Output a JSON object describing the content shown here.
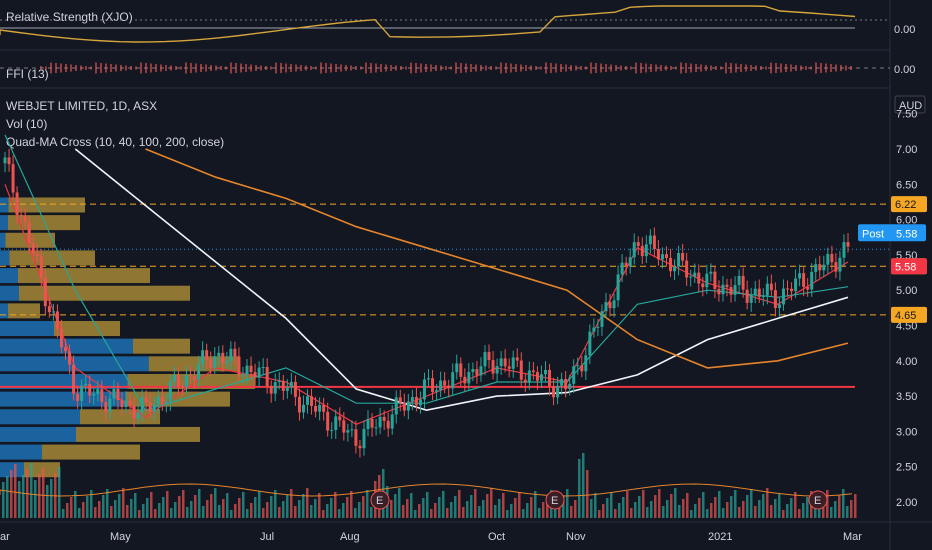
{
  "panes": {
    "rs_label": "Relative Strength (XJO)",
    "rs_value": "0.00",
    "fi_label": "FFI (13)",
    "fi_value": "0.00",
    "symbol_title": "WEBJET LIMITED, 1D, ASX",
    "vol_label": "Vol (10)",
    "ma_label": "Quad-MA Cross (10, 40, 100, 200, close)"
  },
  "price_axis": {
    "currency": "AUD",
    "ticks": [
      "7.50",
      "7.00",
      "6.50",
      "6.00",
      "5.50",
      "5.00",
      "4.50",
      "4.00",
      "3.50",
      "3.00",
      "2.50",
      "2.00"
    ]
  },
  "price_tags": {
    "post_label": "Post",
    "post_value": "5.58",
    "last_value": "5.58",
    "level_tags": [
      "6.22",
      "5.34",
      "4.65"
    ]
  },
  "time_axis": [
    "ar",
    "May",
    "Jul",
    "Aug",
    "Oct",
    "Nov",
    "2021",
    "Mar"
  ],
  "earnings_marker": "E",
  "colors": {
    "background": "#131722",
    "up": "#26a69a",
    "down": "#ef5350",
    "support_line": "#f23645",
    "level_line": "#f5a623",
    "ma10": "#f23645",
    "ma40": "#26a69a",
    "ma100": "#f0f3fa",
    "ma200": "#e5852b",
    "rs_line": "#d4a53b",
    "vp_up": "#2196f3",
    "vp_down": "#f5c542",
    "post_tag": "#2196f3",
    "last_tag": "#f23645"
  },
  "chart_data": {
    "type": "candlestick",
    "title": "WEBJET LIMITED, 1D, ASX",
    "ylabel": "AUD",
    "ylim": [
      1.8,
      7.6
    ],
    "x": [
      "2020-03",
      "2020-04",
      "2020-05",
      "2020-06",
      "2020-07",
      "2020-08",
      "2020-09",
      "2020-10",
      "2020-11",
      "2020-12",
      "2021-01",
      "2021-02",
      "2021-03"
    ],
    "series": [
      {
        "name": "close (approx.)",
        "values": [
          6.8,
          3.6,
          3.3,
          4.1,
          3.6,
          2.9,
          3.6,
          4.0,
          3.6,
          5.7,
          5.1,
          4.9,
          5.58
        ]
      },
      {
        "name": "MA 10",
        "values": [
          6.5,
          3.9,
          3.2,
          3.9,
          3.7,
          3.1,
          3.5,
          3.9,
          3.7,
          5.6,
          5.1,
          4.8,
          5.4
        ]
      },
      {
        "name": "MA 40",
        "values": [
          7.2,
          5.0,
          3.3,
          3.6,
          3.9,
          3.4,
          3.4,
          3.7,
          3.7,
          4.8,
          5.0,
          4.9,
          5.05
        ]
      },
      {
        "name": "MA 100",
        "values": [
          null,
          7.0,
          6.2,
          5.4,
          4.6,
          3.6,
          3.3,
          3.5,
          3.55,
          3.8,
          4.3,
          4.6,
          4.9
        ]
      },
      {
        "name": "MA 200",
        "values": [
          null,
          null,
          7.0,
          6.6,
          6.3,
          5.9,
          5.6,
          5.3,
          5.0,
          4.3,
          3.9,
          4.0,
          4.25
        ]
      }
    ],
    "levels": [
      6.22,
      5.34,
      4.65
    ],
    "support": 3.63,
    "last_price": 5.58
  }
}
